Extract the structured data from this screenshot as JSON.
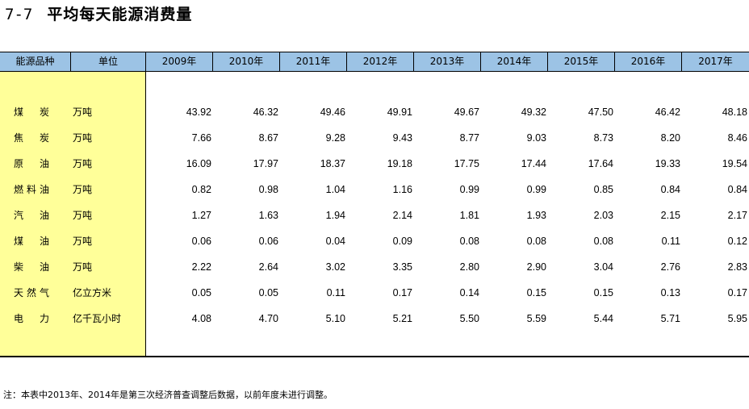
{
  "title": {
    "number": "7-7",
    "text": "平均每天能源消费量"
  },
  "header": {
    "category": "能源品种",
    "unit": "单位",
    "years": [
      "2009年",
      "2010年",
      "2011年",
      "2012年",
      "2013年",
      "2014年",
      "2015年",
      "2016年",
      "2017年"
    ]
  },
  "rows": [
    {
      "name": "煤炭",
      "unit": "万吨",
      "values": [
        "43.92",
        "46.32",
        "49.46",
        "49.91",
        "49.67",
        "49.32",
        "47.50",
        "46.42",
        "48.18"
      ]
    },
    {
      "name": "焦炭",
      "unit": "万吨",
      "values": [
        "7.66",
        "8.67",
        "9.28",
        "9.43",
        "8.77",
        "9.03",
        "8.73",
        "8.20",
        "8.46"
      ]
    },
    {
      "name": "原油",
      "unit": "万吨",
      "values": [
        "16.09",
        "17.97",
        "18.37",
        "19.18",
        "17.75",
        "17.44",
        "17.64",
        "19.33",
        "19.54"
      ]
    },
    {
      "name": "燃料油",
      "unit": "万吨",
      "values": [
        "0.82",
        "0.98",
        "1.04",
        "1.16",
        "0.99",
        "0.99",
        "0.85",
        "0.84",
        "0.84"
      ]
    },
    {
      "name": "汽油",
      "unit": "万吨",
      "values": [
        "1.27",
        "1.63",
        "1.94",
        "2.14",
        "1.81",
        "1.93",
        "2.03",
        "2.15",
        "2.17"
      ]
    },
    {
      "name": "煤油",
      "unit": "万吨",
      "values": [
        "0.06",
        "0.06",
        "0.04",
        "0.09",
        "0.08",
        "0.08",
        "0.08",
        "0.11",
        "0.12"
      ]
    },
    {
      "name": "柴油",
      "unit": "万吨",
      "values": [
        "2.22",
        "2.64",
        "3.02",
        "3.35",
        "2.80",
        "2.90",
        "3.04",
        "2.76",
        "2.83"
      ]
    },
    {
      "name": "天然气",
      "unit": "亿立方米",
      "values": [
        "0.05",
        "0.05",
        "0.11",
        "0.17",
        "0.14",
        "0.15",
        "0.15",
        "0.13",
        "0.17"
      ]
    },
    {
      "name": "电力",
      "unit": "亿千瓦小时",
      "values": [
        "4.08",
        "4.70",
        "5.10",
        "5.21",
        "5.50",
        "5.59",
        "5.44",
        "5.71",
        "5.95"
      ]
    }
  ],
  "note": "注：本表中2013年、2014年是第三次经济普查调整后数据，以前年度未进行调整。",
  "colors": {
    "header_bg": "#9cc3e5",
    "category_bg": "#ffff99"
  }
}
